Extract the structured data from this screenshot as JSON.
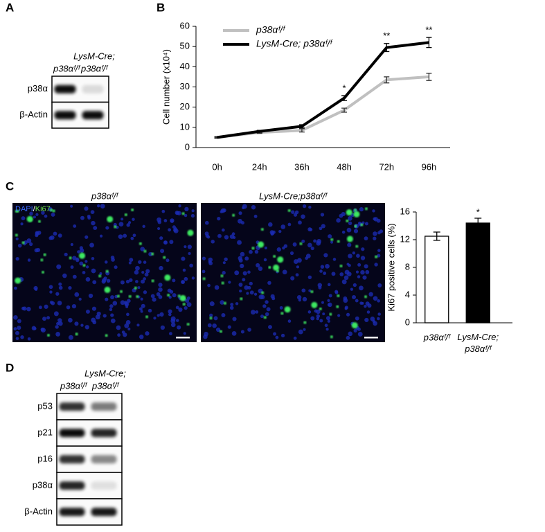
{
  "panel_labels": [
    "A",
    "B",
    "C",
    "D"
  ],
  "panel_a": {
    "columns": [
      [
        "p38αᶠ/ᶠ"
      ],
      [
        "LysM-Cre;",
        "p38αᶠ/ᶠ"
      ]
    ],
    "rows": [
      "p38α",
      "β-Actin"
    ]
  },
  "chart_data": [
    {
      "type": "line",
      "ylabel": "Cell number (x10⁴)",
      "categories": [
        "0h",
        "24h",
        "36h",
        "48h",
        "72h",
        "96h"
      ],
      "ylim": [
        0,
        60
      ],
      "yticks": [
        0,
        10,
        20,
        30,
        40,
        50,
        60
      ],
      "legend": "upper left",
      "series": [
        {
          "name": "p38αᶠ/ᶠ",
          "color": "#c0c0c0",
          "values": [
            5,
            7.5,
            8.5,
            18.5,
            33.5,
            35
          ],
          "errors": [
            0.3,
            0.5,
            0.8,
            1,
            1.5,
            1.8
          ]
        },
        {
          "name": "LysM-Cre; p38αᶠ/ᶠ",
          "color": "#000000",
          "values": [
            5,
            8,
            10.5,
            24.5,
            49.5,
            52
          ],
          "errors": [
            0.3,
            0.5,
            0.8,
            1.2,
            2,
            2.5
          ]
        }
      ],
      "annotations": [
        {
          "text": "*",
          "x": "48h"
        },
        {
          "text": "**",
          "x": "72h"
        },
        {
          "text": "**",
          "x": "96h"
        }
      ]
    },
    {
      "type": "bar",
      "ylabel": "Ki67 positive cells (%)",
      "categories": [
        "p38αᶠ/ᶠ",
        "LysM-Cre; p38αᶠ/ᶠ"
      ],
      "values": [
        12.5,
        14.4
      ],
      "errors": [
        0.6,
        0.7
      ],
      "colors": [
        "#ffffff",
        "#000000"
      ],
      "ylim": [
        0,
        16
      ],
      "yticks": [
        0,
        4,
        8,
        12,
        16
      ],
      "annotations": [
        {
          "text": "*",
          "x": "LysM-Cre; p38αᶠ/ᶠ"
        }
      ]
    }
  ],
  "panel_c": {
    "image_titles": [
      "p38αᶠ/ᶠ",
      "LysM-Cre;p38αᶠ/ᶠ"
    ],
    "stain": {
      "dapi": "DAPI",
      "sep": "/",
      "ki67": "Ki67"
    }
  },
  "panel_d": {
    "columns": [
      [
        "p38αᶠ/ᶠ"
      ],
      [
        "LysM-Cre;",
        "p38αᶠ/ᶠ"
      ]
    ],
    "rows": [
      "p53",
      "p21",
      "p16",
      "p38α",
      "β-Actin"
    ]
  }
}
